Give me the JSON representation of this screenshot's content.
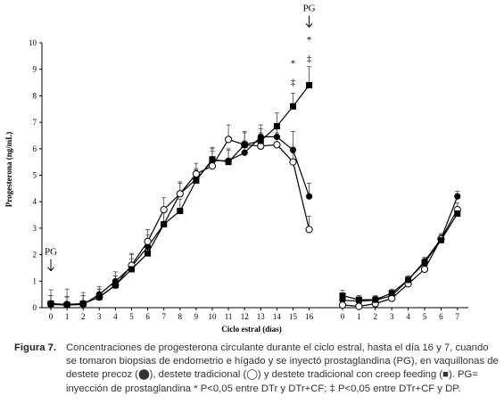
{
  "chart_data": {
    "type": "line",
    "ylabel": "Progesterona (ng/mL)",
    "xlabel": "Ciclo estral (días)",
    "ylim": [
      0,
      10
    ],
    "yticks": [
      "0",
      "1",
      "2",
      "3",
      "4",
      "5",
      "6",
      "7",
      "8",
      "9",
      "10"
    ],
    "segments": [
      {
        "x": [
          0,
          1,
          2,
          3,
          4,
          5,
          6,
          7,
          8,
          9,
          10,
          11,
          12,
          13,
          14,
          15,
          16
        ],
        "tick_labels": [
          "0",
          "1",
          "2",
          "3",
          "4",
          "5",
          "6",
          "7",
          "8",
          "9",
          "10",
          "11",
          "12",
          "13",
          "14",
          "15",
          "16"
        ]
      },
      {
        "x": [
          0,
          1,
          2,
          3,
          4,
          5,
          6,
          7
        ],
        "tick_labels": [
          "0",
          "1",
          "2",
          "3",
          "4",
          "5",
          "6",
          "7"
        ]
      }
    ],
    "series": [
      {
        "marker": "filled-circle",
        "segments": [
          [
            0.12,
            0.1,
            0.12,
            0.5,
            1.0,
            1.55,
            2.3,
            3.15,
            4.3,
            4.85,
            5.55,
            5.55,
            5.85,
            6.45,
            6.45,
            5.95,
            4.2
          ],
          [
            0.28,
            0.25,
            0.28,
            0.45,
            1.05,
            1.75,
            2.6,
            4.2
          ]
        ],
        "error": [
          [
            0.55,
            0.6,
            0.45,
            0.3,
            0.35,
            0.45,
            0.45,
            0.45,
            0.4,
            0.4,
            0.45,
            0.45,
            0.45,
            0.45,
            0.5,
            0.7,
            0.5
          ],
          [
            0.25,
            0.2,
            0.15,
            0.15,
            0.15,
            0.15,
            0.15,
            0.2
          ]
        ]
      },
      {
        "marker": "open-circle",
        "segments": [
          [
            0.15,
            0.12,
            0.15,
            0.4,
            0.85,
            1.6,
            2.5,
            3.7,
            4.3,
            5.05,
            5.35,
            6.35,
            6.15,
            6.1,
            6.15,
            5.5,
            2.95
          ],
          [
            0.1,
            0.05,
            0.15,
            0.35,
            0.9,
            1.45,
            2.6,
            3.7
          ]
        ],
        "error": [
          [
            0.3,
            0.3,
            0.3,
            0.3,
            0.35,
            0.45,
            0.45,
            0.45,
            0.45,
            0.4,
            0.55,
            0.55,
            0.5,
            0.5,
            0.45,
            0.55,
            0.5
          ],
          [
            0.15,
            0.1,
            0.1,
            0.1,
            0.15,
            0.15,
            0.2,
            0.25
          ]
        ]
      },
      {
        "marker": "filled-square",
        "segments": [
          [
            0.15,
            0.1,
            0.15,
            0.4,
            0.85,
            1.45,
            2.05,
            3.15,
            3.65,
            4.8,
            5.6,
            5.5,
            6.15,
            6.3,
            6.85,
            7.6,
            8.4
          ],
          [
            0.45,
            0.3,
            0.3,
            0.55,
            1.05,
            1.7,
            2.55,
            3.55
          ]
        ],
        "error": [
          [
            0.3,
            0.3,
            0.3,
            0.3,
            0.35,
            0.4,
            0.45,
            0.45,
            0.45,
            0.4,
            0.45,
            0.45,
            0.45,
            0.45,
            0.5,
            0.5,
            0.7
          ],
          [
            0.2,
            0.15,
            0.15,
            0.15,
            0.15,
            0.15,
            0.2,
            0.2
          ]
        ]
      }
    ],
    "annotations": [
      {
        "text": "PG",
        "x_segment": 0,
        "x": 0,
        "y": 2.0,
        "arrow": true
      },
      {
        "text": "PG",
        "x_segment": 0,
        "x": 16,
        "y": 11.2,
        "arrow": true
      },
      {
        "text": "*",
        "x_segment": 0,
        "x": 16,
        "y": 10.0
      },
      {
        "text": "‡",
        "x_segment": 0,
        "x": 16,
        "y": 9.3
      },
      {
        "text": "*",
        "x_segment": 0,
        "x": 15,
        "y": 9.1
      },
      {
        "text": "‡",
        "x_segment": 0,
        "x": 15,
        "y": 8.4
      }
    ]
  },
  "caption": {
    "label": "Figura 7.",
    "text": "Concentraciones de progesterona circulante durante el ciclo estral, hasta el día 16 y 7, cuando se tomaron biopsias de endometrio e hígado y se inyectó prostaglandina (PG), en vaquillonas de destete precoz (⬤), destete tradicional (◯) y destete tradicional con creep feeding (■). PG= inyección de prostaglandina * P<0,05 entre DTr y DTr+CF; ‡ P<0,05 entre DTr+CF y DP."
  }
}
